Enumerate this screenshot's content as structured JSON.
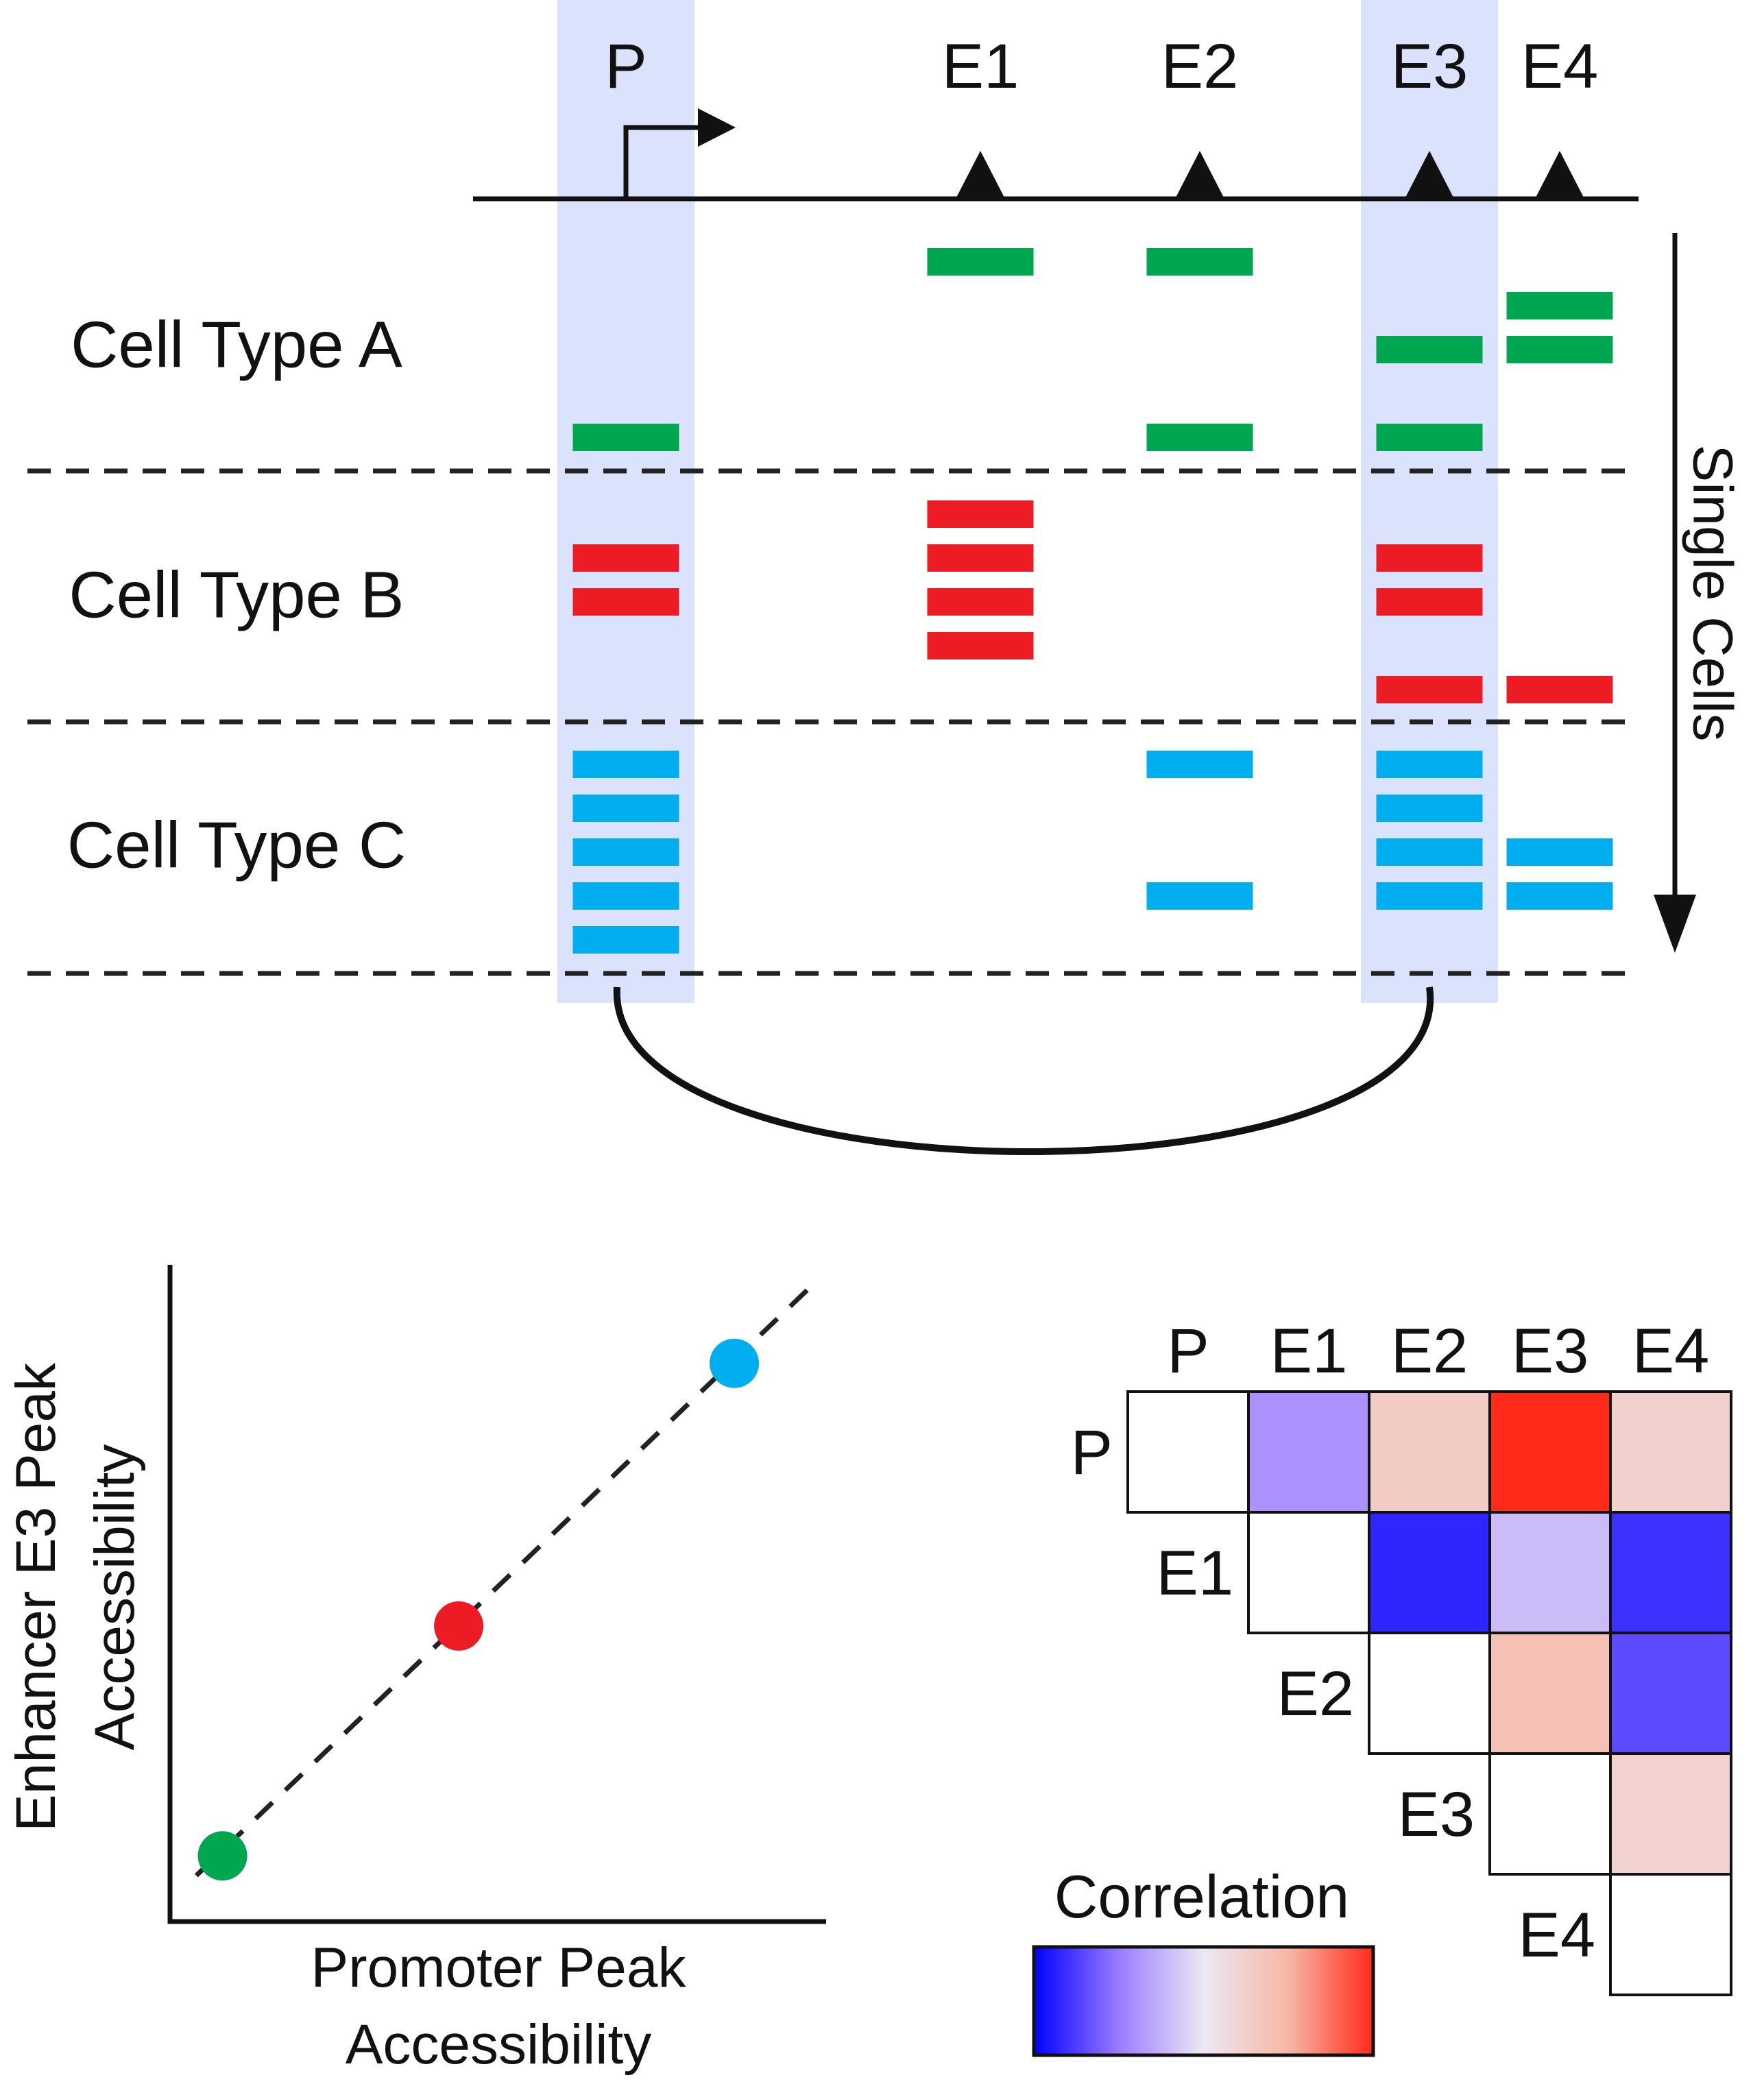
{
  "genome": {
    "elements": [
      {
        "id": "P",
        "label": "P"
      },
      {
        "id": "E1",
        "label": "E1"
      },
      {
        "id": "E2",
        "label": "E2"
      },
      {
        "id": "E3",
        "label": "E3"
      },
      {
        "id": "E4",
        "label": "E4"
      }
    ],
    "highlighted": [
      "P",
      "E3"
    ],
    "highlight_color": "#dbe2fb"
  },
  "cell_types": [
    {
      "label": "Cell Type A",
      "color": "#00a650",
      "reads": [
        {
          "el": "E1",
          "row": 0
        },
        {
          "el": "E2",
          "row": 0
        },
        {
          "el": "E4",
          "row": 1
        },
        {
          "el": "E3",
          "row": 2
        },
        {
          "el": "E4",
          "row": 2
        },
        {
          "el": "P",
          "row": 4
        },
        {
          "el": "E2",
          "row": 4
        },
        {
          "el": "E3",
          "row": 4
        }
      ]
    },
    {
      "label": "Cell Type B",
      "color": "#ed1c24",
      "reads": [
        {
          "el": "E1",
          "row": 0
        },
        {
          "el": "P",
          "row": 1
        },
        {
          "el": "E1",
          "row": 1
        },
        {
          "el": "E3",
          "row": 1
        },
        {
          "el": "P",
          "row": 2
        },
        {
          "el": "E1",
          "row": 2
        },
        {
          "el": "E3",
          "row": 2
        },
        {
          "el": "E1",
          "row": 3
        },
        {
          "el": "E3",
          "row": 4
        },
        {
          "el": "E4",
          "row": 4
        }
      ]
    },
    {
      "label": "Cell Type C",
      "color": "#00aeef",
      "reads": [
        {
          "el": "P",
          "row": 0
        },
        {
          "el": "E2",
          "row": 0
        },
        {
          "el": "E3",
          "row": 0
        },
        {
          "el": "P",
          "row": 1
        },
        {
          "el": "E3",
          "row": 1
        },
        {
          "el": "P",
          "row": 2
        },
        {
          "el": "E3",
          "row": 2
        },
        {
          "el": "E4",
          "row": 2
        },
        {
          "el": "P",
          "row": 3
        },
        {
          "el": "E2",
          "row": 3
        },
        {
          "el": "E3",
          "row": 3
        },
        {
          "el": "E4",
          "row": 3
        },
        {
          "el": "P",
          "row": 4
        }
      ]
    }
  ],
  "single_cells_label": "Single Cells",
  "scatter": {
    "xlabel": [
      "Promoter Peak",
      "Accessibility"
    ],
    "ylabel": [
      "Enhancer E3 Peak",
      "Accessibility"
    ],
    "points": [
      {
        "cell_type": "A",
        "x": 0.08,
        "y": 0.1,
        "color": "#00a650"
      },
      {
        "cell_type": "B",
        "x": 0.44,
        "y": 0.45,
        "color": "#ed1c24"
      },
      {
        "cell_type": "C",
        "x": 0.86,
        "y": 0.85,
        "color": "#00aeef"
      }
    ],
    "trend": {
      "x0": 0.04,
      "y0": 0.07,
      "x1": 0.98,
      "y1": 0.97
    }
  },
  "matrix": {
    "labels": [
      "P",
      "E1",
      "E2",
      "E3",
      "E4"
    ],
    "cells": [
      [
        0.0,
        -0.4,
        0.3,
        1.0,
        0.25
      ],
      [
        null,
        0.0,
        -0.85,
        -0.2,
        -0.8
      ],
      [
        null,
        null,
        0.0,
        0.4,
        -0.7
      ],
      [
        null,
        null,
        null,
        0.0,
        0.22
      ],
      [
        null,
        null,
        null,
        null,
        0.0
      ]
    ]
  },
  "legend": {
    "title": "Correlation",
    "colors": [
      "#0000ff",
      "#9a7bff",
      "#ece8f3",
      "#f7b7a6",
      "#ff2a1a"
    ]
  }
}
